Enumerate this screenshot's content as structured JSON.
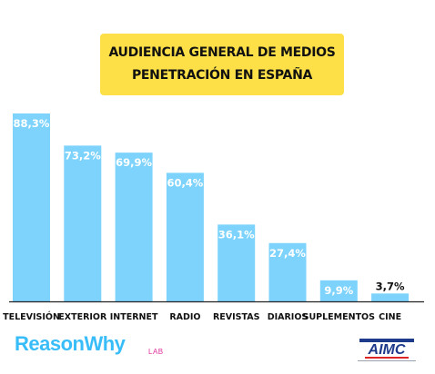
{
  "title": {
    "line1": "AUDIENCIA GENERAL DE MEDIOS",
    "line2": "PENETRACIÓN EN ESPAÑA"
  },
  "chart_data": {
    "type": "bar",
    "categories": [
      "TELEVISIÓN",
      "EXTERIOR",
      "INTERNET",
      "RADIO",
      "REVISTAS",
      "DIARIOS",
      "SUPLEMENTOS",
      "CINE"
    ],
    "values": [
      88.3,
      73.2,
      69.9,
      60.4,
      36.1,
      27.4,
      9.9,
      3.7
    ],
    "value_labels": [
      "88,3%",
      "73,2%",
      "69,9%",
      "60,4%",
      "36,1%",
      "27,4%",
      "9,9%",
      "3,7%"
    ],
    "title": "AUDIENCIA GENERAL DE MEDIOS PENETRACIÓN EN ESPAÑA",
    "xlabel": "",
    "ylabel": "",
    "ylim": [
      0,
      88.3
    ],
    "grid": false,
    "bar_color": "#7dd3fc"
  },
  "footer": {
    "brand": "ReasonWhy",
    "brand_suffix": "LAB",
    "logo_text": "AIMC",
    "brand_color": "#38bdf8",
    "logo_color": "#1e3a8a",
    "logo_accent": "#dc2626"
  }
}
